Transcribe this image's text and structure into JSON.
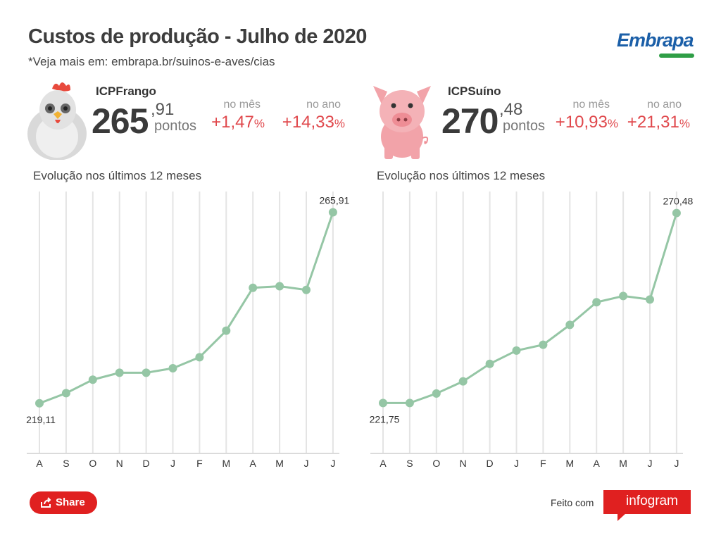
{
  "header": {
    "title": "Custos de produção - Julho de 2020",
    "subtitle": "*Veja mais em: embrapa.br/suinos-e-aves/cias",
    "logo_text": "Embrapa"
  },
  "colors": {
    "line": "#95c6a5",
    "grid": "#e4e4e4",
    "positive": "#e0484c",
    "brand_red": "#e02020"
  },
  "kpis": [
    {
      "animal_icon": "chicken-icon",
      "name": "ICPFrango",
      "value_int": "265",
      "value_dec": ",91",
      "unit": "pontos",
      "month_label": "no mês",
      "month_value": "+1,47",
      "year_label": "no ano",
      "year_value": "+14,33",
      "pct_sign": "%"
    },
    {
      "animal_icon": "pig-icon",
      "name": "ICPSuíno",
      "value_int": "270",
      "value_dec": ",48",
      "unit": "pontos",
      "month_label": "no mês",
      "month_value": "+10,93",
      "year_label": "no ano",
      "year_value": "+21,31",
      "pct_sign": "%"
    }
  ],
  "chart_data": [
    {
      "type": "line",
      "title": "Evolução nos últimos 12 meses",
      "categories": [
        "A",
        "S",
        "O",
        "N",
        "D",
        "J",
        "F",
        "M",
        "A",
        "M",
        "J",
        "J"
      ],
      "values": [
        219.11,
        221.6,
        224.9,
        226.6,
        226.6,
        227.7,
        230.4,
        236.9,
        247.4,
        247.8,
        246.9,
        265.91
      ],
      "first_label": "219,11",
      "last_label": "265,91",
      "ylim": [
        207,
        271
      ],
      "grid": "vertical"
    },
    {
      "type": "line",
      "title": "Evolução nos últimos 12 meses",
      "categories": [
        "A",
        "S",
        "O",
        "N",
        "D",
        "J",
        "F",
        "M",
        "A",
        "M",
        "J",
        "J"
      ],
      "values": [
        221.75,
        221.75,
        224.2,
        227.3,
        231.8,
        235.2,
        236.7,
        241.8,
        247.6,
        249.2,
        248.3,
        270.48
      ],
      "first_label": "221,75",
      "last_label": "270,48",
      "ylim": [
        209,
        276
      ],
      "grid": "vertical"
    }
  ],
  "footer": {
    "share_label": "Share",
    "made_with": "Feito com",
    "brand": "infogram"
  }
}
